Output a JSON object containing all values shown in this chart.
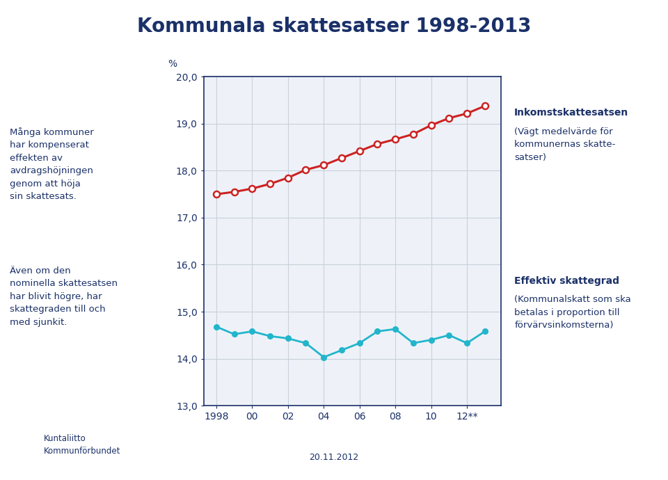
{
  "title": "Kommunala skattesatser 1998-2013",
  "title_color": "#1a3068",
  "background_color": "#ffffff",
  "plot_bg_color": "#eef2f8",
  "ylabel": "%",
  "ylim": [
    13.0,
    20.0
  ],
  "yticks": [
    13.0,
    14.0,
    15.0,
    16.0,
    17.0,
    18.0,
    19.0,
    20.0
  ],
  "x_labels": [
    "1998",
    "00",
    "02",
    "04",
    "06",
    "08",
    "10",
    "12**"
  ],
  "x_values": [
    1998,
    1999,
    2000,
    2001,
    2002,
    2003,
    2004,
    2005,
    2006,
    2007,
    2008,
    2009,
    2010,
    2011,
    2012,
    2013
  ],
  "red_series": [
    17.5,
    17.55,
    17.62,
    17.72,
    17.85,
    18.02,
    18.12,
    18.27,
    18.42,
    18.57,
    18.67,
    18.78,
    18.97,
    19.12,
    19.22,
    19.38
  ],
  "cyan_series": [
    14.68,
    14.52,
    14.58,
    14.48,
    14.43,
    14.33,
    14.03,
    14.18,
    14.33,
    14.58,
    14.63,
    14.33,
    14.4,
    14.5,
    14.33,
    14.58
  ],
  "red_color": "#cc2222",
  "cyan_color": "#22b5cc",
  "grid_color": "#c8d0dc",
  "axis_color": "#1a3068",
  "left_text_top": "Många kommuner\nhar kompenserat\neffekten av\navdragshöjningen\ngenom att höja\nsin skattesats.",
  "left_text_bottom": "Även om den\nnominella skattesatsen\nhar blivit högre, har\nskattegraden till och\nmed sjunkit.",
  "right_text_top_bold": "Inkomstskattesatsen",
  "right_text_top_normal": "(Vägt medelvärde för\nkommunernas skatte-\nsatser)",
  "right_text_bottom_bold": "Effektiv skattegrad",
  "right_text_bottom_normal": "(Kommunalskatt som ska\nbetalas i proportion till\nförvärvsinkomsterna)",
  "footer_text": "20.11.2012",
  "logo_text": "Kuntaliitto\nKommunförbundet",
  "text_color": "#1a3068"
}
